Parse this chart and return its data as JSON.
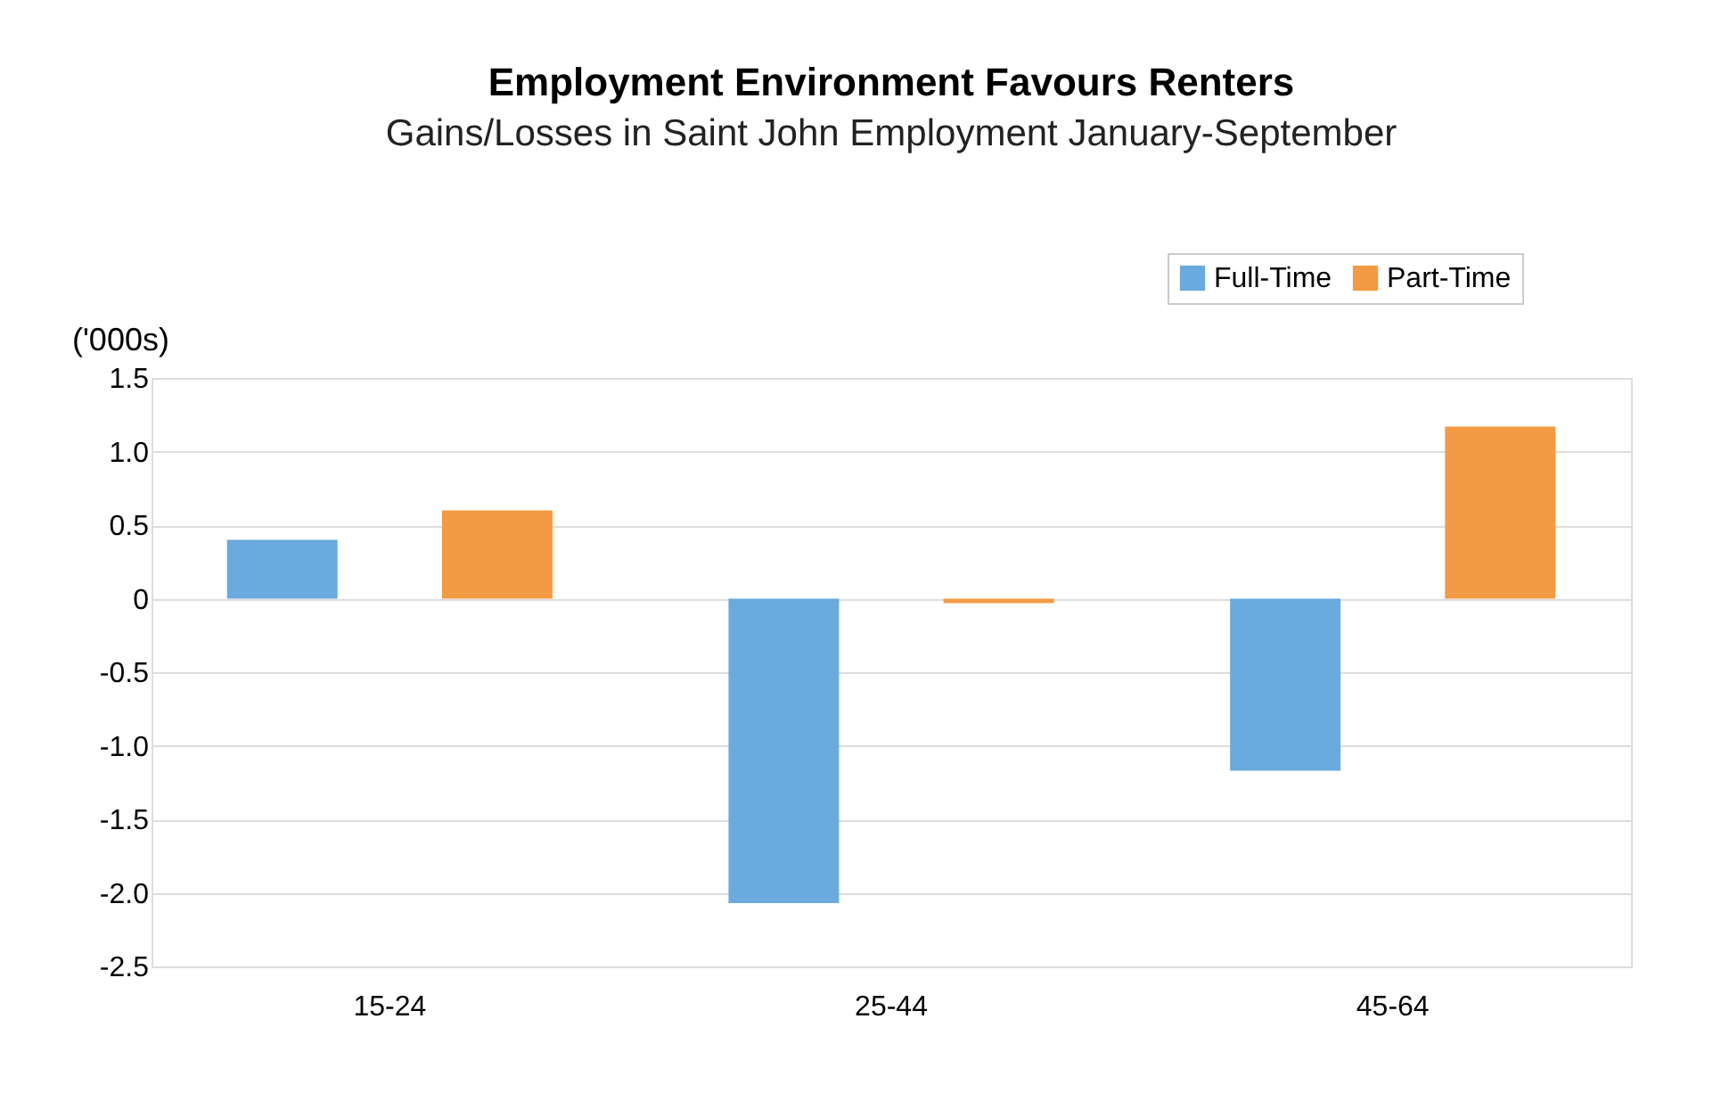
{
  "chart_data": {
    "type": "bar",
    "title": "Employment Environment Favours Renters",
    "subtitle": "Gains/Losses in Saint John Employment January-September",
    "ylabel": "('000s)",
    "categories": [
      "15-24",
      "25-44",
      "45-64"
    ],
    "series": [
      {
        "name": "Full-Time",
        "color": "#6aaade",
        "values": [
          0.4,
          -2.07,
          -1.17
        ]
      },
      {
        "name": "Part-Time",
        "color": "#f39a44",
        "values": [
          0.6,
          -0.03,
          1.17
        ]
      }
    ],
    "ylim": [
      -2.5,
      1.5
    ],
    "yticks": [
      1.5,
      {
        "value": 1,
        "label": "1.0"
      },
      0.5,
      0,
      -0.5,
      {
        "value": -1,
        "label": "-1.0"
      },
      -1.5,
      {
        "value": -2,
        "label": "-2.0"
      },
      -2.5
    ],
    "grid": "y",
    "legend": "top right"
  }
}
